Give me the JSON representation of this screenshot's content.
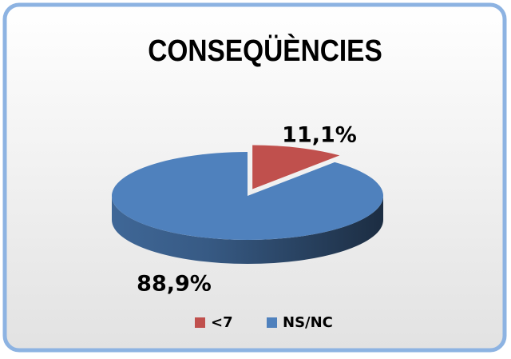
{
  "chart_data": {
    "type": "pie",
    "title": "CONSEQÜÈNCIES",
    "categories": [
      "<7",
      "NS/NC"
    ],
    "values": [
      11.1,
      88.9
    ],
    "value_labels": [
      "11,1%",
      "88,9%"
    ],
    "colors": [
      "#c0504d",
      "#4f81bd"
    ]
  }
}
